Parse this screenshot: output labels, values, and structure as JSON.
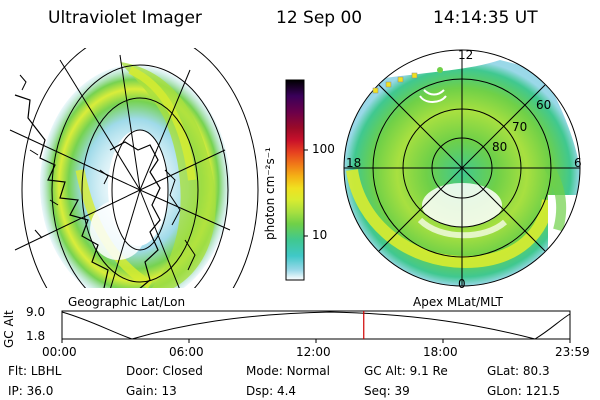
{
  "header": {
    "instrument": "Ultraviolet Imager",
    "date": "12 Sep 00",
    "time": "14:14:35 UT"
  },
  "colorbar": {
    "unit_label": "photon cm⁻²s⁻¹",
    "ticks": [
      "100",
      "10"
    ],
    "colors": [
      "#000000",
      "#3a005a",
      "#6b004a",
      "#9a0a28",
      "#c8102a",
      "#e64020",
      "#f07818",
      "#f5b015",
      "#f0e020",
      "#d8ec30",
      "#a8e040",
      "#6fd048",
      "#40c890",
      "#40c8c8",
      "#9ad8e8",
      "#ffffff"
    ]
  },
  "panels": {
    "left_label": "Geographic Lat/Lon",
    "right_label": "Apex MLat/MLT",
    "polar_labels": {
      "top": "12",
      "bottom": "0",
      "left": "18",
      "right": "6",
      "lat_60": "60",
      "lat_70": "70",
      "lat_80": "80"
    }
  },
  "altitude_plot": {
    "ylabel": "GC Alt",
    "ymax": "9.0",
    "ymin": "1.8",
    "xticks": [
      "00:00",
      "06:00",
      "12:00",
      "18:00",
      "23:59"
    ],
    "marker_fraction": 0.594
  },
  "info": {
    "filter_label": "Flt:",
    "filter_value": "LBHL",
    "door_label": "Door:",
    "door_value": "Closed",
    "mode_label": "Mode:",
    "mode_value": "Normal",
    "gcalt_label": "GC Alt:",
    "gcalt_value": "9.1 Re",
    "glat_label": "GLat:",
    "glat_value": "80.3",
    "ip_label": "IP:",
    "ip_value": "36.0",
    "gain_label": "Gain:",
    "gain_value": "13",
    "dsp_label": "Dsp:",
    "dsp_value": "4.4",
    "seq_label": "Seq:",
    "seq_value": "39",
    "glon_label": "GLon:",
    "glon_value": "121.5"
  }
}
